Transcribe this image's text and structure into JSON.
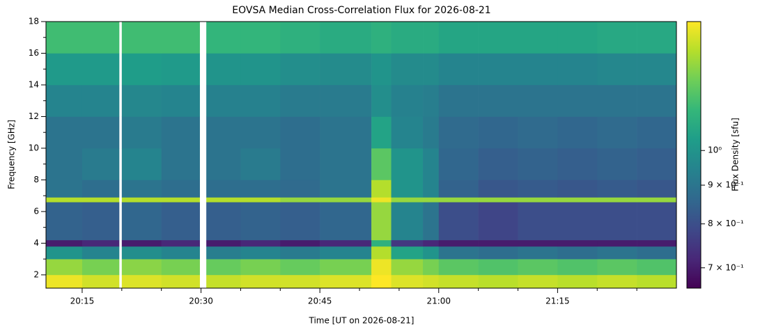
{
  "chart_data": {
    "type": "heatmap",
    "title": "EOVSA Median Cross-Correlation Flux for 2026-08-21",
    "x_label": "Time [UT on 2026-08-21]",
    "y_label": "Frequency [GHz]",
    "colorbar_label": "Flux Density [sfu]",
    "colormap": "viridis",
    "color_scale": "log",
    "xlim": [
      "20:10:26",
      "21:30"
    ],
    "xticks": [
      "20:15",
      "20:30",
      "20:45",
      "21:00",
      "21:15"
    ],
    "xminorticks": [
      "20:20",
      "20:25",
      "20:35",
      "20:40",
      "20:50",
      "20:55",
      "21:05",
      "21:10",
      "21:20",
      "21:25"
    ],
    "ylim": [
      1.16,
      18
    ],
    "yticks": [
      2,
      4,
      6,
      8,
      10,
      12,
      14,
      16,
      18
    ],
    "yminorticks": [
      3,
      5,
      7,
      9,
      11,
      13,
      15,
      17
    ],
    "clim": [
      0.658,
      1.48
    ],
    "cticks": [
      {
        "value": 0.7,
        "label": "7 × 10⁻¹"
      },
      {
        "value": 0.8,
        "label": "8 × 10⁻¹"
      },
      {
        "value": 0.9,
        "label": "9 × 10⁻¹"
      },
      {
        "value": 1,
        "label": "10⁰"
      }
    ],
    "x_edges": [
      "20:10:26",
      "20:15",
      "20:19:40",
      "20:20",
      "20:25",
      "20:29:50",
      "20:30:40",
      "20:35",
      "20:40",
      "20:45",
      "20:51:30",
      "20:54",
      "20:58",
      "21:00",
      "21:05",
      "21:10",
      "21:15",
      "21:20",
      "21:25",
      "21:30"
    ],
    "y_edges": [
      1.16,
      2,
      3,
      3.8,
      4.2,
      6.6,
      6.9,
      8,
      10,
      12,
      14,
      16,
      18
    ],
    "z": [
      [
        1.45,
        1.4,
        null,
        1.42,
        1.4,
        null,
        1.38,
        1.4,
        1.4,
        1.42,
        1.48,
        1.42,
        1.4,
        1.38,
        1.36,
        1.38,
        1.36,
        1.38,
        1.36
      ],
      [
        1.3,
        1.25,
        null,
        1.28,
        1.25,
        null,
        1.22,
        1.25,
        1.22,
        1.25,
        1.45,
        1.3,
        1.25,
        1.2,
        1.18,
        1.2,
        1.18,
        1.2,
        1.18
      ],
      [
        1.0,
        0.95,
        null,
        0.98,
        0.95,
        null,
        0.93,
        0.95,
        0.92,
        0.95,
        1.35,
        1.05,
        1.0,
        0.9,
        0.88,
        0.9,
        0.88,
        0.9,
        0.88
      ],
      [
        0.7,
        0.72,
        null,
        0.7,
        0.72,
        null,
        0.7,
        0.72,
        0.7,
        0.72,
        1.1,
        0.75,
        0.72,
        0.7,
        0.7,
        0.7,
        0.7,
        0.7,
        0.7
      ],
      [
        0.85,
        0.84,
        null,
        0.86,
        0.84,
        null,
        0.84,
        0.85,
        0.84,
        0.86,
        1.3,
        0.95,
        0.9,
        0.8,
        0.78,
        0.8,
        0.8,
        0.8,
        0.8
      ],
      [
        1.35,
        1.35,
        null,
        1.35,
        1.35,
        null,
        1.35,
        1.35,
        1.3,
        1.3,
        1.45,
        1.3,
        1.3,
        1.3,
        1.3,
        1.3,
        1.3,
        1.3,
        1.3
      ],
      [
        0.9,
        0.88,
        null,
        0.9,
        0.88,
        null,
        0.88,
        0.88,
        0.87,
        0.9,
        1.35,
        1.0,
        0.95,
        0.85,
        0.82,
        0.83,
        0.82,
        0.83,
        0.82
      ],
      [
        0.9,
        0.92,
        null,
        0.95,
        0.9,
        null,
        0.9,
        0.92,
        0.88,
        0.9,
        1.2,
        1.0,
        0.95,
        0.86,
        0.84,
        0.85,
        0.84,
        0.85,
        0.84
      ],
      [
        0.9,
        0.9,
        null,
        0.92,
        0.9,
        null,
        0.9,
        0.9,
        0.88,
        0.9,
        1.05,
        0.95,
        0.92,
        0.87,
        0.86,
        0.87,
        0.86,
        0.87,
        0.86
      ],
      [
        0.95,
        0.95,
        null,
        0.96,
        0.95,
        null,
        0.94,
        0.94,
        0.92,
        0.92,
        0.98,
        0.94,
        0.93,
        0.9,
        0.9,
        0.9,
        0.9,
        0.9,
        0.9
      ],
      [
        1.02,
        1.02,
        null,
        1.03,
        1.02,
        null,
        1.0,
        1.0,
        0.98,
        0.97,
        1.0,
        0.97,
        0.97,
        0.95,
        0.95,
        0.95,
        0.95,
        0.96,
        0.96
      ],
      [
        1.15,
        1.15,
        null,
        1.15,
        1.15,
        null,
        1.12,
        1.12,
        1.1,
        1.08,
        1.1,
        1.08,
        1.08,
        1.06,
        1.06,
        1.06,
        1.06,
        1.07,
        1.07
      ]
    ]
  }
}
